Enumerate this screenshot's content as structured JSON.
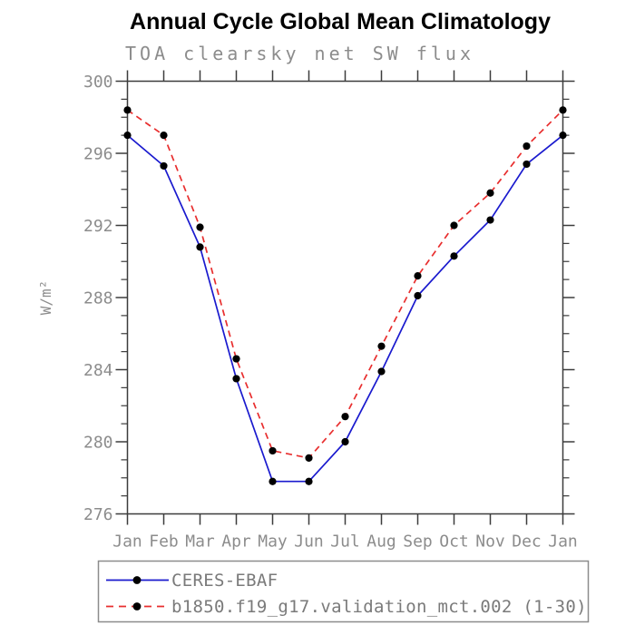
{
  "colors": {
    "background": "#ffffff",
    "title_text": "#000000",
    "muted_text": "#8c8c8c",
    "axis": "#3c3c3c",
    "marker": "#000000",
    "ceres_blue": "#1a1ace",
    "model_red": "#e82e2e"
  },
  "chart_data": {
    "type": "line",
    "title": "Annual Cycle Global Mean Climatology",
    "subtitle": "TOA clearsky net SW flux",
    "ylabel": "W/m²",
    "xlabel": "",
    "categories": [
      "Jan",
      "Feb",
      "Mar",
      "Apr",
      "May",
      "Jun",
      "Jul",
      "Aug",
      "Sep",
      "Oct",
      "Nov",
      "Dec",
      "Jan"
    ],
    "ylim": [
      276,
      300
    ],
    "ytick_step": 4,
    "yminor_step": 1,
    "ytick_labels": [
      "276",
      "280",
      "284",
      "288",
      "292",
      "296",
      "300"
    ],
    "grid": false,
    "legend_position": "bottom-left-box",
    "series": [
      {
        "name": "CERES-EBAF",
        "color": "#1a1ace",
        "line_style": "solid",
        "marker": "filled-circle",
        "marker_color": "#000000",
        "values": [
          297.0,
          295.3,
          290.8,
          283.5,
          277.8,
          277.8,
          280.0,
          283.9,
          288.1,
          290.3,
          292.3,
          295.4,
          297.0
        ]
      },
      {
        "name": "b1850.f19_g17.validation_mct.002 (1-30)",
        "color": "#e82e2e",
        "line_style": "dashed",
        "marker": "filled-circle",
        "marker_color": "#000000",
        "values": [
          298.4,
          297.0,
          291.9,
          284.6,
          279.5,
          279.1,
          281.4,
          285.3,
          289.2,
          292.0,
          293.8,
          296.4,
          298.4
        ]
      }
    ]
  }
}
